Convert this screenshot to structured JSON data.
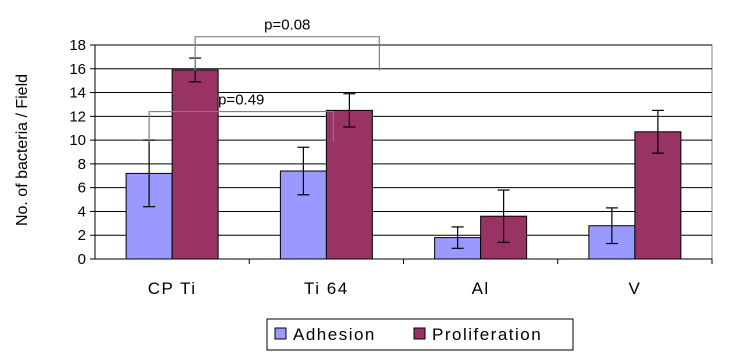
{
  "chart_data": {
    "type": "bar",
    "ylabel": "No. of bacteria / Field",
    "xlabel": "",
    "title": "",
    "ylim": [
      0,
      18
    ],
    "yticks": [
      0,
      2,
      4,
      6,
      8,
      10,
      12,
      14,
      16,
      18
    ],
    "grid": true,
    "legend_position": "bottom",
    "categories": [
      "CP Ti",
      "Ti 64",
      "Al",
      "V"
    ],
    "series": [
      {
        "name": "Adhesion",
        "color": "#9999ff",
        "values": [
          7.2,
          7.4,
          1.8,
          2.8
        ],
        "errors": [
          2.8,
          2.0,
          0.9,
          1.5
        ]
      },
      {
        "name": "Proliferation",
        "color": "#993366",
        "values": [
          15.9,
          12.5,
          3.6,
          10.7
        ],
        "errors": [
          1.0,
          1.4,
          2.2,
          1.8
        ]
      }
    ],
    "annotations": [
      {
        "text": "p=0.08",
        "from": [
          0,
          "Proliferation"
        ],
        "to": [
          1,
          "Proliferation"
        ]
      },
      {
        "text": "p=0.49",
        "from": [
          0,
          "Adhesion"
        ],
        "to": [
          1,
          "Adhesion"
        ]
      }
    ]
  }
}
